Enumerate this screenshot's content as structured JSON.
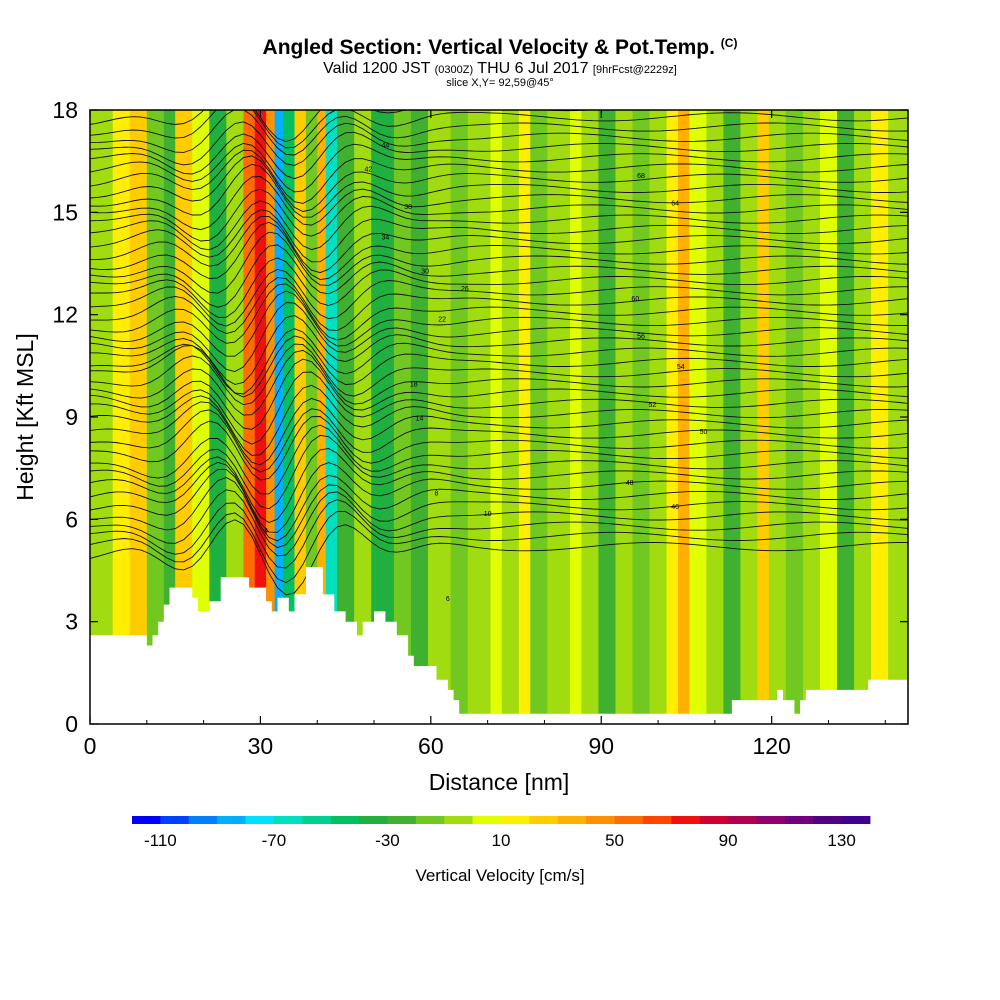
{
  "header": {
    "title": "Angled Section: Vertical Velocity & Pot.Temp.",
    "title_mark": "(C)",
    "valid_prefix": "Valid 1200 JST",
    "valid_utc": "(0300Z)",
    "valid_date": "THU 6 Jul 2017",
    "forecast": "[9hrFcst@2229z]",
    "slice": "slice X,Y= 92,59@45°"
  },
  "chart_data": {
    "type": "heatmap",
    "xlabel": "Distance [nm]",
    "ylabel": "Height [Kft MSL]",
    "xlim": [
      0,
      144
    ],
    "ylim": [
      0,
      18
    ],
    "x_ticks": [
      0,
      30,
      60,
      90,
      120
    ],
    "y_ticks": [
      0,
      3,
      6,
      9,
      12,
      15,
      18
    ],
    "colorbar": {
      "label": "Vertical Velocity [cm/s]",
      "tick_labels": [
        "-110",
        "-70",
        "-30",
        "10",
        "50",
        "90",
        "130"
      ],
      "tick_values": [
        -110,
        -70,
        -30,
        10,
        50,
        90,
        130
      ],
      "range": [
        -120,
        140
      ],
      "colors": [
        "#0000ff",
        "#0040ff",
        "#0080ff",
        "#00b0ff",
        "#00e0ff",
        "#00e0c0",
        "#00d090",
        "#00c060",
        "#20b040",
        "#40b030",
        "#70c820",
        "#a0dc10",
        "#e0ff00",
        "#ffee00",
        "#ffcc00",
        "#ffb000",
        "#ff9000",
        "#ff6c00",
        "#ff4400",
        "#f01010",
        "#d00030",
        "#b00050",
        "#900070",
        "#700080",
        "#500080",
        "#400090"
      ]
    },
    "velocity_columns": [
      {
        "x": 0,
        "w": 4,
        "color": "#a0dc10"
      },
      {
        "x": 4,
        "w": 3,
        "color": "#ffee00"
      },
      {
        "x": 7,
        "w": 3,
        "color": "#ffcc00"
      },
      {
        "x": 10,
        "w": 3,
        "color": "#70c820"
      },
      {
        "x": 13,
        "w": 2,
        "color": "#40b030"
      },
      {
        "x": 15,
        "w": 3,
        "color": "#ffcc00"
      },
      {
        "x": 18,
        "w": 3,
        "color": "#e0ff00"
      },
      {
        "x": 21,
        "w": 3,
        "color": "#20b040"
      },
      {
        "x": 24,
        "w": 3,
        "color": "#a0dc10"
      },
      {
        "x": 27,
        "w": 2,
        "color": "#ff6c00"
      },
      {
        "x": 29,
        "w": 2,
        "color": "#f01010"
      },
      {
        "x": 31,
        "w": 1.5,
        "color": "#ff9000"
      },
      {
        "x": 32.5,
        "w": 1.5,
        "color": "#00b0ff"
      },
      {
        "x": 34,
        "w": 2,
        "color": "#00c060"
      },
      {
        "x": 36,
        "w": 2,
        "color": "#ffcc00"
      },
      {
        "x": 38,
        "w": 2,
        "color": "#70c820"
      },
      {
        "x": 40,
        "w": 1.5,
        "color": "#ffb000"
      },
      {
        "x": 41.5,
        "w": 2,
        "color": "#00e0c0"
      },
      {
        "x": 43.5,
        "w": 3,
        "color": "#40b030"
      },
      {
        "x": 46.5,
        "w": 3,
        "color": "#a0dc10"
      },
      {
        "x": 49.5,
        "w": 4,
        "color": "#20b040"
      },
      {
        "x": 53.5,
        "w": 3,
        "color": "#70c820"
      },
      {
        "x": 56.5,
        "w": 3,
        "color": "#40b030"
      },
      {
        "x": 59.5,
        "w": 4,
        "color": "#a0dc10"
      },
      {
        "x": 63.5,
        "w": 3,
        "color": "#70c820"
      },
      {
        "x": 66.5,
        "w": 4,
        "color": "#a0dc10"
      },
      {
        "x": 70.5,
        "w": 2,
        "color": "#e0ff00"
      },
      {
        "x": 72.5,
        "w": 3,
        "color": "#a0dc10"
      },
      {
        "x": 75.5,
        "w": 2,
        "color": "#ffee00"
      },
      {
        "x": 77.5,
        "w": 3,
        "color": "#70c820"
      },
      {
        "x": 80.5,
        "w": 4,
        "color": "#a0dc10"
      },
      {
        "x": 84.5,
        "w": 2,
        "color": "#e0ff00"
      },
      {
        "x": 86.5,
        "w": 3,
        "color": "#a0dc10"
      },
      {
        "x": 89.5,
        "w": 3,
        "color": "#40b030"
      },
      {
        "x": 92.5,
        "w": 3,
        "color": "#a0dc10"
      },
      {
        "x": 95.5,
        "w": 3,
        "color": "#70c820"
      },
      {
        "x": 98.5,
        "w": 3,
        "color": "#a0dc10"
      },
      {
        "x": 101.5,
        "w": 2,
        "color": "#ffee00"
      },
      {
        "x": 103.5,
        "w": 2,
        "color": "#ffb000"
      },
      {
        "x": 105.5,
        "w": 3,
        "color": "#e0ff00"
      },
      {
        "x": 108.5,
        "w": 3,
        "color": "#a0dc10"
      },
      {
        "x": 111.5,
        "w": 3,
        "color": "#40b030"
      },
      {
        "x": 114.5,
        "w": 3,
        "color": "#a0dc10"
      },
      {
        "x": 117.5,
        "w": 2,
        "color": "#ffcc00"
      },
      {
        "x": 119.5,
        "w": 3,
        "color": "#a0dc10"
      },
      {
        "x": 122.5,
        "w": 3,
        "color": "#70c820"
      },
      {
        "x": 125.5,
        "w": 3,
        "color": "#a0dc10"
      },
      {
        "x": 128.5,
        "w": 3,
        "color": "#e0ff00"
      },
      {
        "x": 131.5,
        "w": 3,
        "color": "#40b030"
      },
      {
        "x": 134.5,
        "w": 3,
        "color": "#a0dc10"
      },
      {
        "x": 137.5,
        "w": 3,
        "color": "#ffee00"
      },
      {
        "x": 140.5,
        "w": 3.5,
        "color": "#a0dc10"
      }
    ],
    "terrain_profile": [
      [
        0,
        2.6
      ],
      [
        10,
        2.6
      ],
      [
        10,
        2.3
      ],
      [
        11,
        2.3
      ],
      [
        11,
        2.6
      ],
      [
        12,
        2.6
      ],
      [
        12,
        3.0
      ],
      [
        13,
        3.0
      ],
      [
        13,
        3.5
      ],
      [
        14,
        3.5
      ],
      [
        14,
        4.0
      ],
      [
        18,
        4.0
      ],
      [
        18,
        3.7
      ],
      [
        19,
        3.7
      ],
      [
        19,
        3.3
      ],
      [
        21,
        3.3
      ],
      [
        21,
        3.6
      ],
      [
        23,
        3.6
      ],
      [
        23,
        4.3
      ],
      [
        28,
        4.3
      ],
      [
        28,
        4.0
      ],
      [
        31,
        4.0
      ],
      [
        31,
        3.6
      ],
      [
        32,
        3.6
      ],
      [
        32,
        3.3
      ],
      [
        33,
        3.3
      ],
      [
        33,
        3.7
      ],
      [
        35,
        3.7
      ],
      [
        35,
        3.3
      ],
      [
        36,
        3.3
      ],
      [
        36,
        3.8
      ],
      [
        38,
        3.8
      ],
      [
        38,
        4.6
      ],
      [
        41,
        4.6
      ],
      [
        41,
        3.8
      ],
      [
        43,
        3.8
      ],
      [
        43,
        3.3
      ],
      [
        45,
        3.3
      ],
      [
        45,
        3.0
      ],
      [
        47,
        3.0
      ],
      [
        47,
        2.6
      ],
      [
        48,
        2.6
      ],
      [
        48,
        3.0
      ],
      [
        50,
        3.0
      ],
      [
        50,
        3.3
      ],
      [
        52,
        3.3
      ],
      [
        52,
        3.0
      ],
      [
        54,
        3.0
      ],
      [
        54,
        2.6
      ],
      [
        56,
        2.6
      ],
      [
        56,
        2.0
      ],
      [
        57,
        2.0
      ],
      [
        57,
        1.7
      ],
      [
        61,
        1.7
      ],
      [
        61,
        1.3
      ],
      [
        63,
        1.3
      ],
      [
        63,
        1.0
      ],
      [
        64,
        1.0
      ],
      [
        64,
        0.7
      ],
      [
        65,
        0.7
      ],
      [
        65,
        0.3
      ],
      [
        113,
        0.3
      ],
      [
        113,
        0.7
      ],
      [
        121,
        0.7
      ],
      [
        121,
        1.0
      ],
      [
        122,
        1.0
      ],
      [
        122,
        0.7
      ],
      [
        124,
        0.7
      ],
      [
        124,
        0.3
      ],
      [
        125,
        0.3
      ],
      [
        125,
        0.7
      ],
      [
        126,
        0.7
      ],
      [
        126,
        1.0
      ],
      [
        132,
        1.0
      ],
      [
        132,
        1.0
      ],
      [
        137,
        1.0
      ],
      [
        137,
        1.3
      ],
      [
        144,
        1.3
      ],
      [
        144,
        0
      ]
    ],
    "isentrope_labels": [
      "-2",
      "4",
      "6",
      "8",
      "10",
      "14",
      "18",
      "22",
      "26",
      "30",
      "34",
      "38",
      "42",
      "44",
      "46",
      "48",
      "50",
      "52",
      "54",
      "56",
      "60",
      "64",
      "68"
    ]
  }
}
